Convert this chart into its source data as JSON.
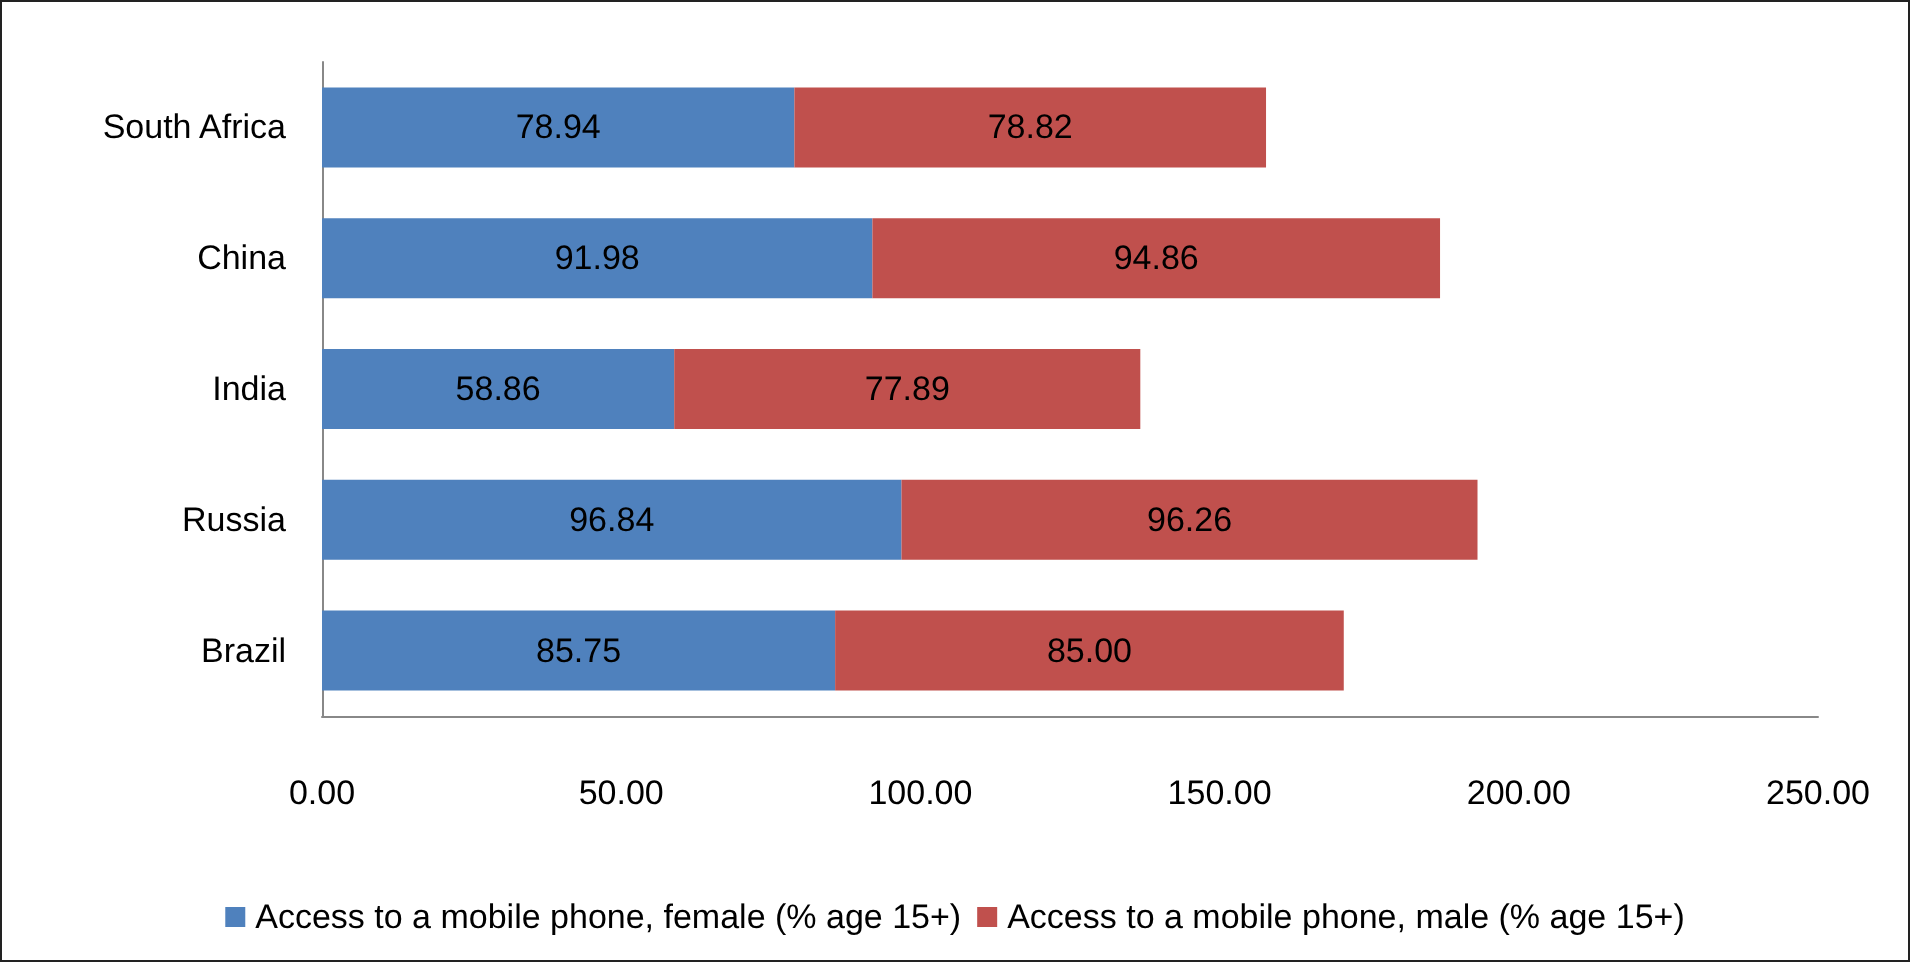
{
  "chart_data": {
    "type": "bar",
    "orientation": "horizontal",
    "stacked": true,
    "categories": [
      "South Africa",
      "China",
      "India",
      "Russia",
      "Brazil"
    ],
    "series": [
      {
        "name": "Access to a mobile phone, female (% age 15+)",
        "color": "#4f81bd",
        "values": [
          78.94,
          91.98,
          58.86,
          96.84,
          85.75
        ],
        "value_labels": [
          "78.94",
          "91.98",
          "58.86",
          "96.84",
          "85.75"
        ]
      },
      {
        "name": "Access to a mobile phone, male (% age 15+)",
        "color": "#c0504d",
        "values": [
          78.82,
          94.86,
          77.89,
          96.26,
          85.0
        ],
        "value_labels": [
          "78.82",
          "94.86",
          "77.89",
          "96.26",
          "85.00"
        ]
      }
    ],
    "xlim": [
      0,
      250
    ],
    "xticks": [
      {
        "value": 0,
        "label": "0.00"
      },
      {
        "value": 50,
        "label": "50.00"
      },
      {
        "value": 100,
        "label": "100.00"
      },
      {
        "value": 150,
        "label": "150.00"
      },
      {
        "value": 200,
        "label": "200.00"
      },
      {
        "value": 250,
        "label": "250.00"
      }
    ],
    "grid": false,
    "legend": "bottom"
  }
}
